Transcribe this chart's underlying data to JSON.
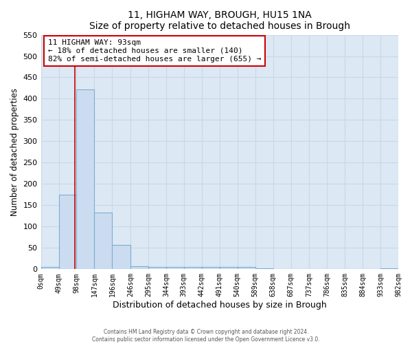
{
  "title": "11, HIGHAM WAY, BROUGH, HU15 1NA",
  "subtitle": "Size of property relative to detached houses in Brough",
  "xlabel": "Distribution of detached houses by size in Brough",
  "ylabel": "Number of detached properties",
  "bar_edges": [
    0,
    49,
    98,
    147,
    196,
    246,
    295,
    344,
    393,
    442,
    491,
    540,
    589,
    638,
    687,
    737,
    786,
    835,
    884,
    933,
    982
  ],
  "bar_heights": [
    5,
    175,
    422,
    133,
    57,
    7,
    5,
    5,
    5,
    5,
    5,
    5,
    2,
    0,
    0,
    0,
    0,
    0,
    0,
    2
  ],
  "bar_color": "#ccdcf0",
  "bar_edge_color": "#7aaed0",
  "vline_x": 93,
  "vline_color": "#cc0000",
  "ylim": [
    0,
    550
  ],
  "xlim": [
    0,
    982
  ],
  "annotation_title": "11 HIGHAM WAY: 93sqm",
  "annotation_line1": "← 18% of detached houses are smaller (140)",
  "annotation_line2": "82% of semi-detached houses are larger (655) →",
  "annotation_box_color": "#ffffff",
  "annotation_box_edge": "#cc0000",
  "tick_labels": [
    "0sqm",
    "49sqm",
    "98sqm",
    "147sqm",
    "196sqm",
    "246sqm",
    "295sqm",
    "344sqm",
    "393sqm",
    "442sqm",
    "491sqm",
    "540sqm",
    "589sqm",
    "638sqm",
    "687sqm",
    "737sqm",
    "786sqm",
    "835sqm",
    "884sqm",
    "933sqm",
    "982sqm"
  ],
  "footer1": "Contains HM Land Registry data © Crown copyright and database right 2024.",
  "footer2": "Contains public sector information licensed under the Open Government Licence v3.0.",
  "grid_color": "#c8d8e8",
  "background_color": "#dce8f4",
  "yticks": [
    0,
    50,
    100,
    150,
    200,
    250,
    300,
    350,
    400,
    450,
    500,
    550
  ]
}
